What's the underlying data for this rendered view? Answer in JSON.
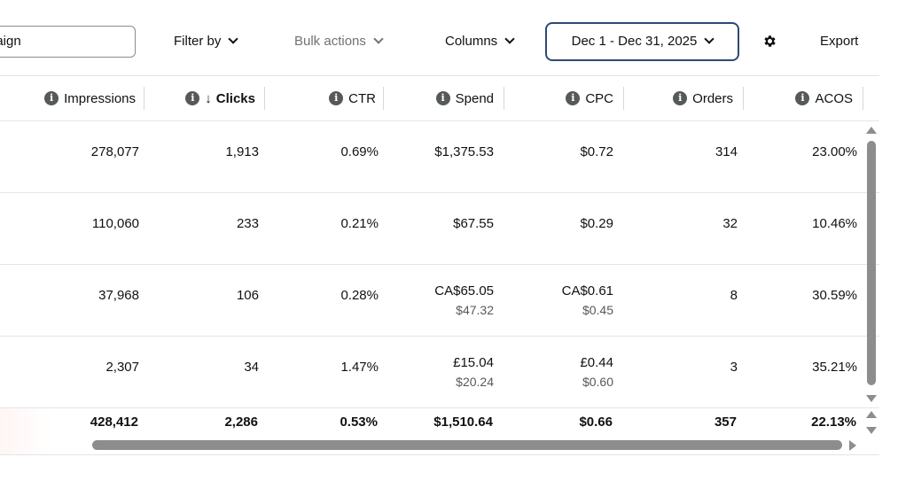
{
  "toolbar": {
    "search_value": "paign",
    "filter_label": "Filter by",
    "bulk_label": "Bulk actions",
    "columns_label": "Columns",
    "date_range": "Dec 1 - Dec 31, 2025",
    "export_label": "Export"
  },
  "table": {
    "headers": {
      "impressions": "Impressions",
      "clicks": "Clicks",
      "ctr": "CTR",
      "spend": "Spend",
      "cpc": "CPC",
      "orders": "Orders",
      "acos": "ACOS"
    },
    "rows": [
      {
        "impressions": "278,077",
        "clicks": "1,913",
        "ctr": "0.69%",
        "spend": "$1,375.53",
        "spend_sub": "",
        "cpc": "$0.72",
        "cpc_sub": "",
        "orders": "314",
        "acos": "23.00%"
      },
      {
        "impressions": "110,060",
        "clicks": "233",
        "ctr": "0.21%",
        "spend": "$67.55",
        "spend_sub": "",
        "cpc": "$0.29",
        "cpc_sub": "",
        "orders": "32",
        "acos": "10.46%"
      },
      {
        "impressions": "37,968",
        "clicks": "106",
        "ctr": "0.28%",
        "spend": "CA$65.05",
        "spend_sub": "$47.32",
        "cpc": "CA$0.61",
        "cpc_sub": "$0.45",
        "orders": "8",
        "acos": "30.59%"
      },
      {
        "impressions": "2,307",
        "clicks": "34",
        "ctr": "1.47%",
        "spend": "£15.04",
        "spend_sub": "$20.24",
        "cpc": "£0.44",
        "cpc_sub": "$0.60",
        "orders": "3",
        "acos": "35.21%"
      }
    ],
    "totals": {
      "impressions": "428,412",
      "clicks": "2,286",
      "ctr": "0.53%",
      "spend": "$1,510.64",
      "cpc": "$0.66",
      "orders": "357",
      "acos": "22.13%"
    }
  },
  "colors": {
    "date_border": "#2d4a73",
    "icon_gray": "#565959",
    "scroll_gray": "#8d8d8d"
  }
}
